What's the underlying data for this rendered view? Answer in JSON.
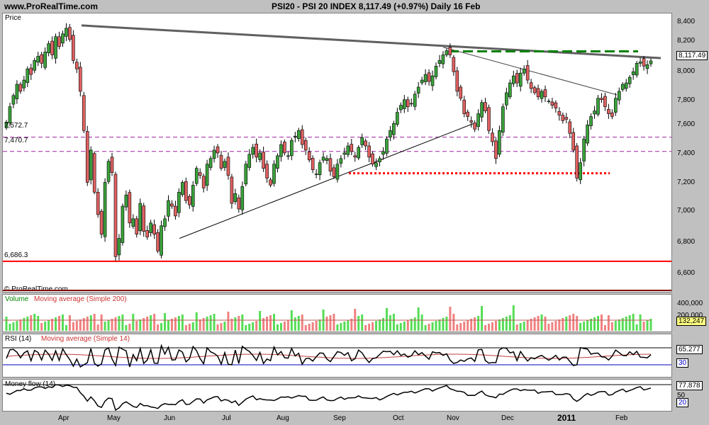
{
  "header": {
    "site": "www.ProRealTime.com",
    "title": "PSI20 - PSI 20 INDEX    8,117.49 (+0.97%)    Daily  16 Feb"
  },
  "price_panel": {
    "label": "Price",
    "watermark": "© ProRealTime.com",
    "price_box": "8,117.49",
    "level_labels": [
      "7,572.7",
      "7,470.7",
      "6,686.3"
    ],
    "y_ticks": [
      "8,400",
      "8,200",
      "8,000",
      "7,800",
      "7,600",
      "7,400",
      "7,200",
      "7,000",
      "6,800",
      "6,600"
    ]
  },
  "volume_panel": {
    "label": "Volume",
    "ma_label": "Moving average (Simple 200)",
    "value_box": "132,247",
    "ticks": [
      "400,000",
      "200,000"
    ]
  },
  "rsi_panel": {
    "label": "RSI (14)",
    "ma_label": "Moving average (Simple 14)",
    "value_box": "65.277",
    "level_box": "30"
  },
  "mf_panel": {
    "label": "Money flow (14)",
    "value_box": "77.878",
    "ticks": [
      "50",
      "20"
    ]
  },
  "x_axis": {
    "labels": [
      "Apr",
      "May",
      "Jun",
      "Jul",
      "Aug",
      "Sep",
      "Oct",
      "Nov",
      "Dec",
      "2011",
      "Feb"
    ]
  },
  "colors": {
    "up": "#3aa23a",
    "down": "#e06060",
    "support": "#ff0000",
    "resistance": "#008000",
    "trend": "#606060"
  },
  "chart_data": {
    "type": "candlestick",
    "ylim": [
      6550,
      8450
    ],
    "closes": [
      7680,
      7790,
      7870,
      7950,
      7900,
      7980,
      8060,
      8020,
      8120,
      8150,
      8100,
      8180,
      8240,
      8160,
      8290,
      8220,
      8310,
      8350,
      8270,
      8120,
      8060,
      7900,
      7620,
      7250,
      7480,
      7180,
      7020,
      6880,
      7250,
      7400,
      7320,
      6720,
      6850,
      7080,
      7160,
      6960,
      6990,
      6880,
      7100,
      6900,
      6860,
      6960,
      6880,
      6760,
      6940,
      6990,
      7120,
      7080,
      7010,
      7180,
      7250,
      7120,
      7090,
      7230,
      7350,
      7300,
      7210,
      7380,
      7420,
      7480,
      7460,
      7350,
      7400,
      7300,
      7100,
      7170,
      7060,
      7220,
      7380,
      7450,
      7500,
      7430,
      7460,
      7350,
      7280,
      7230,
      7380,
      7440,
      7520,
      7460,
      7440,
      7550,
      7580,
      7620,
      7520,
      7480,
      7410,
      7340,
      7310,
      7390,
      7430,
      7420,
      7330,
      7290,
      7380,
      7420,
      7460,
      7510,
      7470,
      7430,
      7500,
      7570,
      7510,
      7430,
      7380,
      7390,
      7420,
      7470,
      7560,
      7620,
      7670,
      7750,
      7800,
      7840,
      7790,
      7810,
      7880,
      7930,
      7980,
      8020,
      7970,
      8010,
      8080,
      8120,
      8160,
      8190,
      8160,
      8040,
      7900,
      7850,
      7740,
      7720,
      7680,
      7630,
      7740,
      7820,
      7760,
      7620,
      7540,
      7420,
      7620,
      7790,
      7890,
      7960,
      8010,
      7960,
      8030,
      8060,
      7980,
      7920,
      7890,
      7860,
      7900,
      7860,
      7830,
      7800,
      7780,
      7730,
      7690,
      7700,
      7600,
      7480,
      7280,
      7390,
      7560,
      7660,
      7720,
      7760,
      7850,
      7840,
      7790,
      7740,
      7720,
      7850,
      7900,
      7950,
      7960,
      8000,
      8040,
      8100,
      8110,
      8080,
      8090,
      8117
    ]
  }
}
